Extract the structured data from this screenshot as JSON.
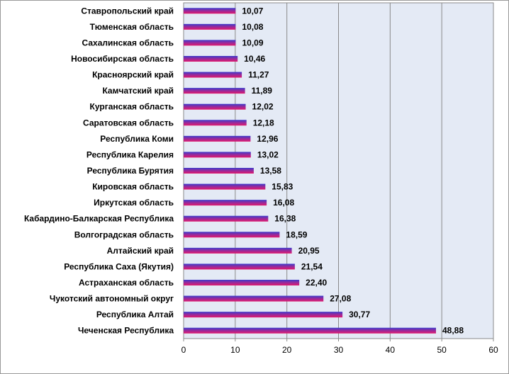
{
  "chart_data": {
    "type": "bar",
    "orientation": "horizontal",
    "categories": [
      "Ставропольский край",
      "Тюменская область",
      "Сахалинская область",
      "Новосибирская область",
      "Красноярский край",
      "Камчатский край",
      "Курганская область",
      "Саратовская область",
      "Республика Коми",
      "Республика Карелия",
      "Республика Бурятия",
      "Кировская область",
      "Иркутская область",
      "Кабардино-Балкарская Республика",
      "Волгоградская область",
      "Алтайский край",
      "Республика Саха (Якутия)",
      "Астраханская область",
      "Чукотский автономный округ",
      "Республика Алтай",
      "Чеченская Республика"
    ],
    "values": [
      10.07,
      10.08,
      10.09,
      10.46,
      11.27,
      11.89,
      12.02,
      12.18,
      12.96,
      13.02,
      13.58,
      15.83,
      16.08,
      16.38,
      18.59,
      20.95,
      21.54,
      22.4,
      27.08,
      30.77,
      48.88
    ],
    "value_labels": [
      "10,07",
      "10,08",
      "10,09",
      "10,46",
      "11,27",
      "11,89",
      "12,02",
      "12,18",
      "12,96",
      "13,02",
      "13,58",
      "15,83",
      "16,08",
      "16,38",
      "18,59",
      "20,95",
      "21,54",
      "22,40",
      "27,08",
      "30,77",
      "48,88"
    ],
    "xlim": [
      0,
      60
    ],
    "x_ticks": [
      "0",
      "10",
      "20",
      "30",
      "40",
      "50",
      "60"
    ],
    "grid": "vertical",
    "title": "",
    "xlabel": "",
    "ylabel": "",
    "colors": {
      "bar_top": "#3a3acc",
      "bar_bottom": "#e0186c",
      "plot_background": "#e4eaf5",
      "grid": "#8a8a8a",
      "border": "#999999"
    }
  }
}
